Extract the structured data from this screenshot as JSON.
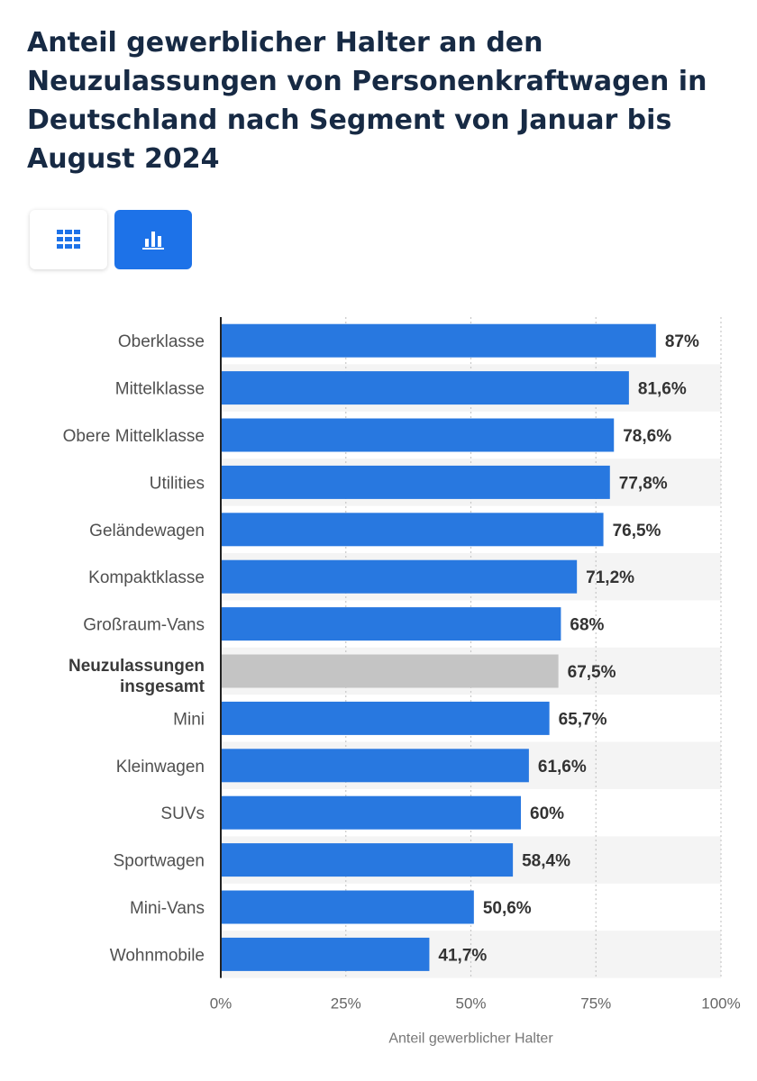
{
  "header": {
    "title": "Anteil gewerblicher Halter an den Neuzulassungen von Personenkraftwagen in Deutschland nach Segment von Januar bis August 2024"
  },
  "view_toggle": {
    "table_icon": "table-grid-icon",
    "chart_icon": "bar-chart-icon",
    "active": "chart"
  },
  "colors": {
    "bar": "#2878e0",
    "total_bar": "#c4c4c4",
    "stripe": "#f4f4f4",
    "accent": "#1d72e8"
  },
  "chart_data": {
    "type": "bar",
    "orientation": "horizontal",
    "title": "Anteil gewerblicher Halter an den Neuzulassungen von Personenkraftwagen in Deutschland nach Segment von Januar bis August 2024",
    "xlabel": "Anteil gewerblicher Halter",
    "ylabel": "",
    "xlim": [
      0,
      100
    ],
    "grid": true,
    "unit": "%",
    "ticks": [
      "0%",
      "25%",
      "50%",
      "75%",
      "100%"
    ],
    "categories": [
      "Oberklasse",
      "Mittelklasse",
      "Obere Mittelklasse",
      "Utilities",
      "Geländewagen",
      "Kompaktklasse",
      "Großraum-Vans",
      "Neuzulassungen insgesamt",
      "Mini",
      "Kleinwagen",
      "SUVs",
      "Sportwagen",
      "Mini-Vans",
      "Wohnmobile"
    ],
    "category_lines": [
      [
        "Oberklasse"
      ],
      [
        "Mittelklasse"
      ],
      [
        "Obere Mittelklasse"
      ],
      [
        "Utilities"
      ],
      [
        "Geländewagen"
      ],
      [
        "Kompaktklasse"
      ],
      [
        "Großraum-Vans"
      ],
      [
        "Neuzulassungen",
        "insgesamt"
      ],
      [
        "Mini"
      ],
      [
        "Kleinwagen"
      ],
      [
        "SUVs"
      ],
      [
        "Sportwagen"
      ],
      [
        "Mini-Vans"
      ],
      [
        "Wohnmobile"
      ]
    ],
    "values": [
      87,
      81.6,
      78.6,
      77.8,
      76.5,
      71.2,
      68,
      67.5,
      65.7,
      61.6,
      60,
      58.4,
      50.6,
      41.7
    ],
    "value_labels": [
      "87%",
      "81,6%",
      "78,6%",
      "77,8%",
      "76,5%",
      "71,2%",
      "68%",
      "67,5%",
      "65,7%",
      "61,6%",
      "60%",
      "58,4%",
      "50,6%",
      "41,7%"
    ],
    "highlight_index": 7
  }
}
